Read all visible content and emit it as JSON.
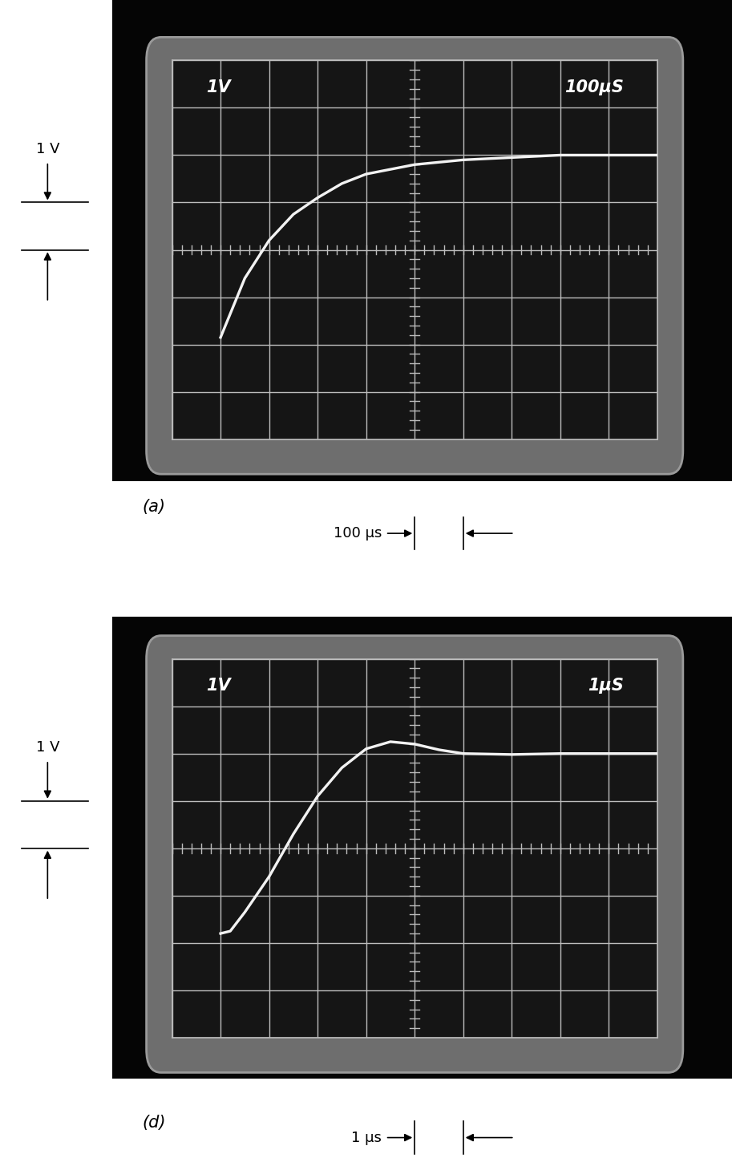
{
  "chart_data": [
    {
      "type": "line",
      "title": "(a)",
      "annotations": {
        "volts_per_div": "1V",
        "time_per_div": "100μS",
        "volts_marker": "1 V",
        "time_marker": "100 μs"
      },
      "x": [
        100,
        150,
        200,
        250,
        300,
        350,
        400,
        500,
        600,
        700,
        800,
        900,
        1000
      ],
      "values": [
        -1.85,
        -0.6,
        0.2,
        0.75,
        1.1,
        1.4,
        1.6,
        1.8,
        1.9,
        1.95,
        2.0,
        2.0,
        2.0
      ],
      "color": "#f2f2f2",
      "xlim": [
        0,
        1000
      ],
      "ylim": [
        -4,
        4
      ],
      "xticks": [
        0,
        100,
        200,
        300,
        400,
        500,
        600,
        700,
        800,
        900,
        1000
      ],
      "yticks": [
        -4,
        -3,
        -2,
        -1,
        0,
        1,
        2,
        3,
        4
      ],
      "grid": true,
      "tick_labels": false
    },
    {
      "type": "line",
      "title": "(d)",
      "annotations": {
        "volts_per_div": "1V",
        "time_per_div": "1μS",
        "volts_marker": "1 V",
        "time_marker": "1 μs"
      },
      "x": [
        1.0,
        1.2,
        1.5,
        2.0,
        2.5,
        3.0,
        3.5,
        4.0,
        4.5,
        5.0,
        5.5,
        6.0,
        7.0,
        8.0,
        9.0,
        10.0
      ],
      "values": [
        -1.8,
        -1.75,
        -1.35,
        -0.6,
        0.3,
        1.1,
        1.7,
        2.1,
        2.25,
        2.2,
        2.08,
        2.0,
        1.98,
        2.0,
        2.0,
        2.0
      ],
      "color": "#f2f2f2",
      "xlim": [
        0,
        10
      ],
      "ylim": [
        -4,
        4
      ],
      "xticks": [
        0,
        1,
        2,
        3,
        4,
        5,
        6,
        7,
        8,
        9,
        10
      ],
      "yticks": [
        -4,
        -3,
        -2,
        -1,
        0,
        1,
        2,
        3,
        4
      ],
      "grid": true,
      "tick_labels": false
    }
  ]
}
